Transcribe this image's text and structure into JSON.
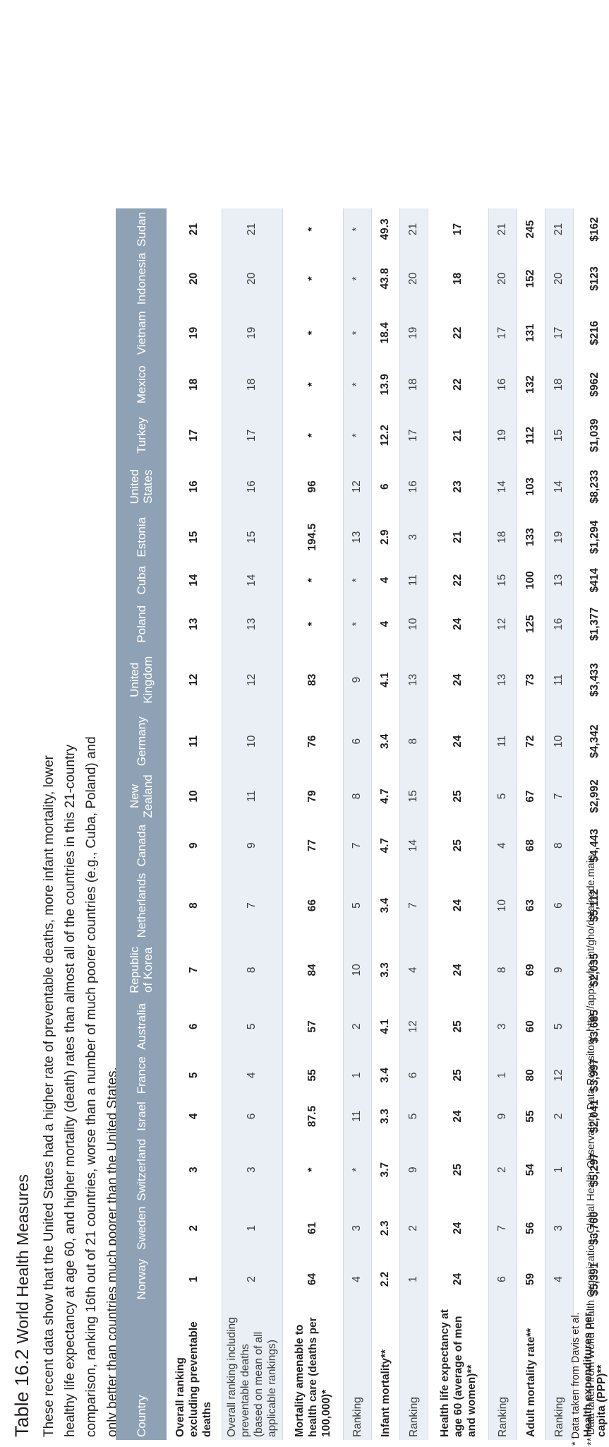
{
  "caption": {
    "table_number": "Table 16.2",
    "title": "World Health Measures",
    "description": "These recent data show that the United States had a higher rate of preventable deaths, more infant mortality, lower healthy life expectancy at age 60, and higher mortality (death) rates than almost all of the countries in this 21-country comparison, ranking 16th out of 21 countries, worse than a number of much poorer countries (e.g., Cuba, Poland) and only better than countries much poorer than the United States."
  },
  "table": {
    "corner_label": "Country",
    "countries": [
      "Norway",
      "Sweden",
      "Switzerland",
      "Israel",
      "France",
      "Australia",
      "Republic of Korea",
      "Netherlands",
      "Canada",
      "New Zealand",
      "Germany",
      "United Kingdom",
      "Poland",
      "Cuba",
      "Estonia",
      "United States",
      "Turkey",
      "Mexico",
      "Vietnam",
      "Indonesia",
      "Sudan"
    ],
    "rows": [
      {
        "label": "Overall ranking excluding preventable deaths",
        "style": "main",
        "values": [
          "1",
          "2",
          "3",
          "4",
          "5",
          "6",
          "7",
          "8",
          "9",
          "10",
          "11",
          "12",
          "13",
          "14",
          "15",
          "16",
          "17",
          "18",
          "19",
          "20",
          "21"
        ]
      },
      {
        "label": "Overall ranking including preventable deaths (based on mean of all applicable rankings)",
        "style": "sub",
        "values": [
          "2",
          "1",
          "3",
          "6",
          "4",
          "5",
          "8",
          "7",
          "9",
          "11",
          "10",
          "12",
          "13",
          "14",
          "15",
          "16",
          "17",
          "18",
          "19",
          "20",
          "21"
        ]
      },
      {
        "label": "Mortality amenable to health care (deaths per 100,000)*",
        "style": "main",
        "values": [
          "64",
          "61",
          "*",
          "87.5",
          "55",
          "57",
          "84",
          "66",
          "77",
          "79",
          "76",
          "83",
          "*",
          "*",
          "194.5",
          "96",
          "*",
          "*",
          "*",
          "*",
          "*"
        ]
      },
      {
        "label": "Ranking",
        "style": "sub",
        "values": [
          "4",
          "3",
          "*",
          "11",
          "1",
          "2",
          "10",
          "5",
          "7",
          "8",
          "6",
          "9",
          "*",
          "*",
          "13",
          "12",
          "*",
          "*",
          "*",
          "*",
          "*"
        ]
      },
      {
        "label": "Infant mortality**",
        "style": "main",
        "values": [
          "2.2",
          "2.3",
          "3.7",
          "3.3",
          "3.4",
          "4.1",
          "3.3",
          "3.4",
          "4.7",
          "4.7",
          "3.4",
          "4.1",
          "4",
          "4",
          "2.9",
          "6",
          "12.2",
          "13.9",
          "18.4",
          "43.8",
          "49.3"
        ]
      },
      {
        "label": "Ranking",
        "style": "sub",
        "values": [
          "1",
          "2",
          "9",
          "5",
          "6",
          "12",
          "4",
          "7",
          "14",
          "15",
          "8",
          "13",
          "10",
          "11",
          "3",
          "16",
          "17",
          "18",
          "19",
          "20",
          "21"
        ]
      },
      {
        "label": "Health life expectancy at age 60 (average of men and women)**",
        "style": "main",
        "values": [
          "24",
          "24",
          "25",
          "24",
          "25",
          "25",
          "24",
          "24",
          "25",
          "25",
          "24",
          "24",
          "24",
          "22",
          "21",
          "23",
          "21",
          "22",
          "22",
          "18",
          "17"
        ]
      },
      {
        "label": "Ranking",
        "style": "sub",
        "values": [
          "6",
          "7",
          "2",
          "9",
          "1",
          "3",
          "8",
          "10",
          "4",
          "5",
          "11",
          "13",
          "12",
          "15",
          "18",
          "14",
          "19",
          "16",
          "17",
          "20",
          "21"
        ]
      },
      {
        "label": "Adult mortality rate**",
        "style": "main",
        "values": [
          "59",
          "56",
          "54",
          "55",
          "80",
          "60",
          "69",
          "63",
          "68",
          "67",
          "72",
          "73",
          "125",
          "100",
          "133",
          "103",
          "112",
          "132",
          "131",
          "152",
          "245"
        ]
      },
      {
        "label": "Ranking",
        "style": "sub",
        "values": [
          "4",
          "3",
          "1",
          "2",
          "12",
          "5",
          "9",
          "6",
          "8",
          "7",
          "10",
          "11",
          "16",
          "13",
          "19",
          "14",
          "15",
          "18",
          "17",
          "20",
          "21"
        ]
      },
      {
        "label": "Health expenditures per capita (PPP)**",
        "style": "main",
        "values": [
          "$5,391",
          "$3,760",
          "$5,297",
          "$2,041",
          "$3,997",
          "$3,685",
          "$2,035",
          "$5,112",
          "$4,443",
          "$2,992",
          "$4,342",
          "$3,433",
          "$1,377",
          "$414",
          "$1,294",
          "$8,233",
          "$1,039",
          "$962",
          "$216",
          "$123",
          "$162"
        ]
      }
    ]
  },
  "footnotes": [
    "* Data taken from Davis et al.",
    "** Data taken from World Health Organization, Global Health Observatory Data Repository. http://apps.who.int/gho/data/node.main"
  ]
}
